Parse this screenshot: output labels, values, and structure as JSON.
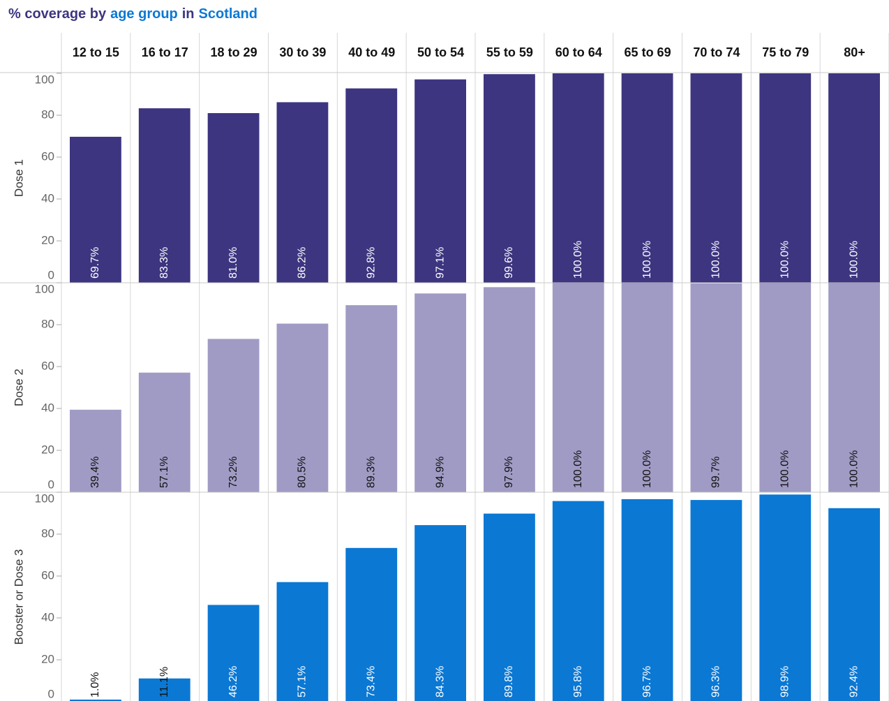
{
  "chart_data": {
    "type": "bar",
    "title_parts": [
      {
        "text": "% coverage by",
        "color": "#3d3580"
      },
      {
        "text": "age group",
        "color": "#0b78d4"
      },
      {
        "text": "in",
        "color": "#3d3580"
      },
      {
        "text": "Scotland",
        "color": "#0b78d4"
      }
    ],
    "categories": [
      "12 to 15",
      "16 to 17",
      "18 to 29",
      "30 to 39",
      "40 to 49",
      "50 to 54",
      "55 to 59",
      "60 to 64",
      "65 to 69",
      "70 to 74",
      "75 to 79",
      "80+"
    ],
    "ylim": [
      0,
      100
    ],
    "yticks": [
      0,
      20,
      40,
      60,
      80,
      100
    ],
    "series": [
      {
        "name": "Dose 1",
        "color": "#3d3580",
        "label_color": "#ffffff",
        "values": [
          69.7,
          83.3,
          81.0,
          86.2,
          92.8,
          97.1,
          99.6,
          100,
          100,
          100,
          100,
          100
        ],
        "value_labels": [
          "69.7%",
          "83.3%",
          "81.0%",
          "86.2%",
          "92.8%",
          "97.1%",
          "99.6%",
          "100.0%",
          "100.0%",
          "100.0%",
          "100.0%",
          "100.0%"
        ]
      },
      {
        "name": "Dose 2",
        "color": "#a09bc4",
        "label_color": "#111111",
        "values": [
          39.4,
          57.1,
          73.2,
          80.5,
          89.3,
          94.9,
          97.9,
          100,
          100,
          99.7,
          100,
          100
        ],
        "value_labels": [
          "39.4%",
          "57.1%",
          "73.2%",
          "80.5%",
          "89.3%",
          "94.9%",
          "97.9%",
          "100.0%",
          "100.0%",
          "99.7%",
          "100.0%",
          "100.0%"
        ]
      },
      {
        "name": "Booster or Dose 3",
        "color": "#0b78d4",
        "label_color": "#ffffff",
        "values": [
          1.0,
          11.1,
          46.2,
          57.1,
          73.4,
          84.3,
          89.8,
          95.8,
          96.7,
          96.3,
          98.9,
          92.4
        ],
        "value_labels": [
          "1.0%",
          "11.1%",
          "46.2%",
          "57.1%",
          "73.4%",
          "84.3%",
          "89.8%",
          "95.8%",
          "96.7%",
          "96.3%",
          "98.9%",
          "92.4%"
        ]
      }
    ]
  }
}
